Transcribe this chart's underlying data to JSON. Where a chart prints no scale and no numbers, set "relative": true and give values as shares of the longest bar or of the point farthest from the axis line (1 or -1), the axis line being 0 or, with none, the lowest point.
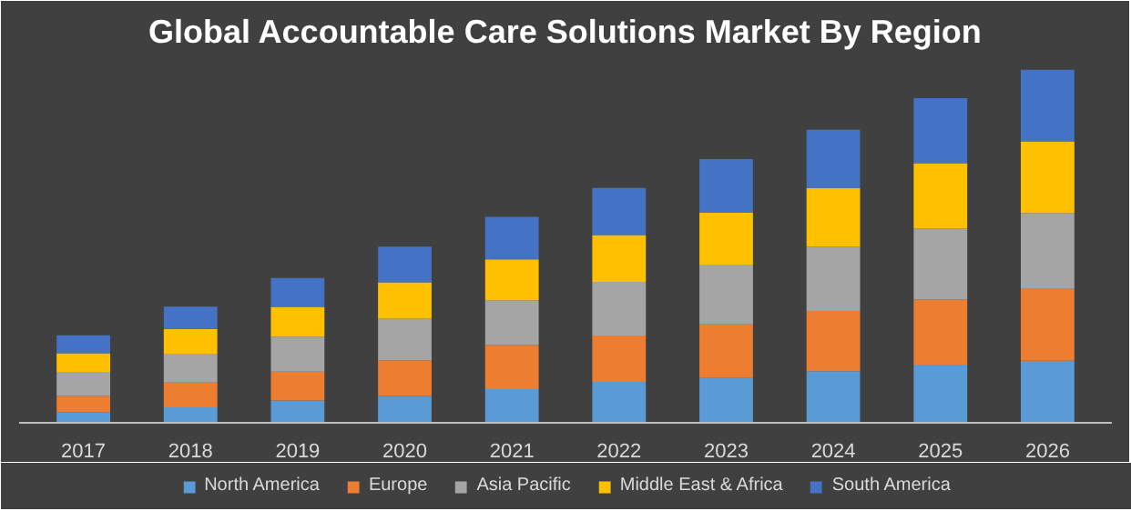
{
  "chart_data": {
    "type": "bar",
    "title": "Global Accountable Care Solutions Market By Region",
    "stacked": true,
    "relative": true,
    "legend": "bottom",
    "grid": false,
    "categories": [
      "2017",
      "2018",
      "2019",
      "2020",
      "2021",
      "2022",
      "2023",
      "2024",
      "2025",
      "2026"
    ],
    "series": [
      {
        "name": "North America",
        "color": "#5b9bd5",
        "values": [
          0.03,
          0.044,
          0.063,
          0.076,
          0.095,
          0.116,
          0.127,
          0.146,
          0.165,
          0.176
        ]
      },
      {
        "name": "Europe",
        "color": "#ed7d31",
        "values": [
          0.046,
          0.07,
          0.082,
          0.101,
          0.125,
          0.131,
          0.152,
          0.171,
          0.184,
          0.203
        ]
      },
      {
        "name": "Asia Pacific",
        "color": "#a5a5a5",
        "values": [
          0.068,
          0.08,
          0.099,
          0.118,
          0.127,
          0.152,
          0.169,
          0.182,
          0.201,
          0.215
        ]
      },
      {
        "name": "Middle East & Africa",
        "color": "#ffc000",
        "values": [
          0.053,
          0.072,
          0.084,
          0.103,
          0.116,
          0.133,
          0.147,
          0.166,
          0.185,
          0.203
        ]
      },
      {
        "name": "South America",
        "color": "#4472c4",
        "values": [
          0.051,
          0.063,
          0.082,
          0.101,
          0.12,
          0.133,
          0.152,
          0.165,
          0.184,
          0.203
        ]
      }
    ]
  }
}
